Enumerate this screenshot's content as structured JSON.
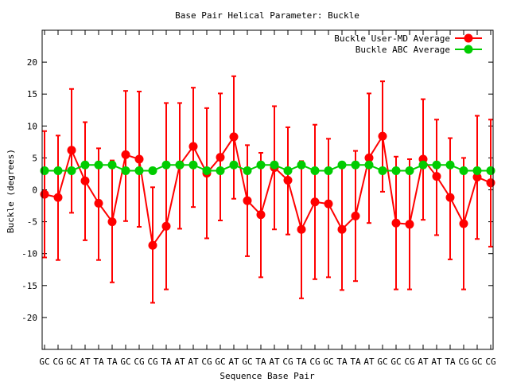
{
  "chart_data": {
    "type": "line",
    "title": "Base Pair Helical Parameter: Buckle",
    "xlabel": "Sequence Base Pair",
    "ylabel": "Buckle (degrees)",
    "ylim": [
      -25,
      25
    ],
    "yticks": [
      -20,
      -15,
      -10,
      -5,
      0,
      5,
      10,
      15,
      20
    ],
    "grid": false,
    "legend_position": "top-right",
    "categories": [
      "GC",
      "CG",
      "GC",
      "AT",
      "TA",
      "TA",
      "GC",
      "CG",
      "CG",
      "TA",
      "AT",
      "AT",
      "CG",
      "GC",
      "AT",
      "GC",
      "TA",
      "AT",
      "CG",
      "TA",
      "CG",
      "GC",
      "TA",
      "TA",
      "AT",
      "GC",
      "GC",
      "CG",
      "AT",
      "AT",
      "TA",
      "CG",
      "GC",
      "CG"
    ],
    "series": [
      {
        "name": "Buckle User-MD Average",
        "color": "#ff0000",
        "values": [
          -0.7,
          -1.2,
          6.2,
          1.4,
          -2.1,
          -5.0,
          5.5,
          4.8,
          -8.7,
          -5.7,
          3.9,
          6.8,
          2.6,
          5.1,
          8.3,
          -1.7,
          -3.9,
          3.5,
          1.5,
          -6.2,
          -1.9,
          -2.2,
          -6.2,
          -4.1,
          5.0,
          8.4,
          -5.2,
          -5.4,
          4.8,
          2.1,
          -1.2,
          -5.3,
          2.0,
          1.1
        ],
        "error_low": [
          -10.6,
          -11.0,
          -3.6,
          -7.9,
          -11.0,
          -14.5,
          -4.9,
          -5.8,
          -17.7,
          -15.6,
          -6.1,
          -2.7,
          -7.6,
          -4.8,
          -1.4,
          -10.4,
          -13.7,
          -6.2,
          -7.0,
          -17.0,
          -14.0,
          -13.7,
          -15.7,
          -14.3,
          -5.2,
          -0.3,
          -15.6,
          -15.6,
          -4.7,
          -7.1,
          -10.9,
          -15.6,
          -7.7,
          -8.9
        ],
        "error_high": [
          9.2,
          8.5,
          15.8,
          10.6,
          6.5,
          4.6,
          15.5,
          15.4,
          0.4,
          13.6,
          13.6,
          16.0,
          12.8,
          15.1,
          17.8,
          7.0,
          5.8,
          13.1,
          9.8,
          4.5,
          10.2,
          8.0,
          3.9,
          6.1,
          15.1,
          17.0,
          5.2,
          4.8,
          14.2,
          11.0,
          8.1,
          5.0,
          11.6,
          11.0
        ]
      },
      {
        "name": "Buckle ABC Average",
        "color": "#00cc00",
        "values": [
          3.0,
          3.0,
          3.0,
          3.9,
          3.9,
          3.9,
          3.0,
          3.0,
          3.0,
          3.9,
          3.9,
          3.9,
          3.0,
          3.0,
          3.9,
          3.0,
          3.9,
          3.9,
          3.0,
          3.9,
          3.0,
          3.0,
          3.9,
          3.9,
          3.9,
          3.0,
          3.0,
          3.0,
          3.9,
          3.9,
          3.9,
          3.0,
          3.0,
          3.0
        ]
      }
    ]
  }
}
